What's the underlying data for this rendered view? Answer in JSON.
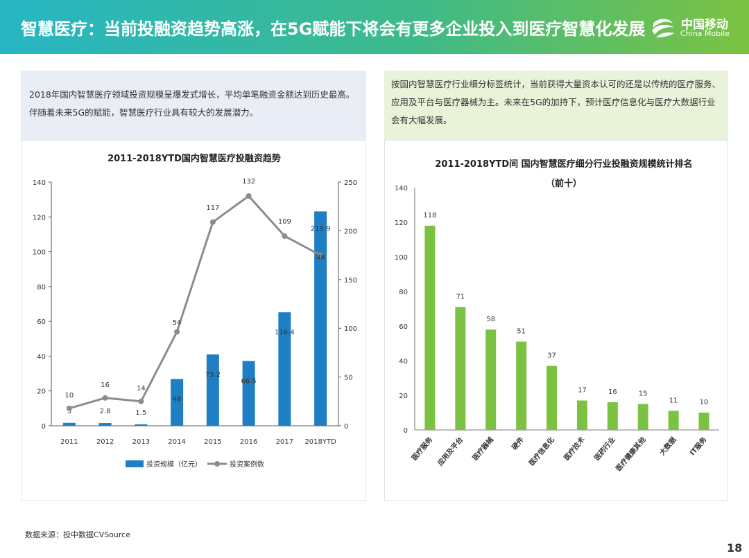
{
  "header": {
    "title": "智慧医疗：当前投融资趋势高涨，在5G赋能下将会有更多企业投入到医疗智慧化发展",
    "logo_cn": "中国移动",
    "logo_en": "China Mobile"
  },
  "left_desc": "2018年国内智慧医疗领域投资规模呈爆发式增长，平均单笔融资金额达到历史最高。伴随着未来5G的赋能，智慧医疗行业具有较大的发展潜力。",
  "right_desc": "按国内智慧医疗行业细分标签统计，当前获得大量资本认可的还是以传统的医疗服务、应用及平台与医疗器械为主。未来在5G的加持下，预计医疗信息化与医疗大数据行业会有大幅发展。",
  "source": "数据来源：投中数据CVSource",
  "page_number": "18",
  "colors": {
    "bar_blue": "#1f7fc4",
    "line_gray": "#8c8c8c",
    "bar_green": "#7cc242"
  },
  "chart_data": [
    {
      "type": "bar",
      "title": "2011-2018YTD国内智慧医疗投融资趋势",
      "categories": [
        "2011",
        "2012",
        "2013",
        "2014",
        "2015",
        "2016",
        "2017",
        "2018YTD"
      ],
      "series": [
        {
          "name": "投资规模（亿元）",
          "type": "bar",
          "axis": "right",
          "values": [
            3,
            2.8,
            1.5,
            48,
            73.2,
            66.5,
            116.4,
            219.9
          ],
          "labels": [
            "3",
            "2.8",
            "1.5",
            "48",
            "73.2",
            "66.5",
            "116.4",
            "219.9"
          ]
        },
        {
          "name": "投资案例数",
          "type": "line",
          "axis": "left",
          "values": [
            10,
            16,
            14,
            54,
            117,
            132,
            109,
            98
          ],
          "labels": [
            "10",
            "16",
            "14",
            "54",
            "117",
            "132",
            "109",
            "98"
          ]
        }
      ],
      "left_axis": {
        "ylim": [
          0,
          140
        ],
        "ticks": [
          "0",
          "20",
          "40",
          "60",
          "80",
          "100",
          "120",
          "140"
        ]
      },
      "right_axis": {
        "ylim": [
          0,
          250
        ],
        "ticks": [
          "0",
          "50",
          "100",
          "150",
          "200",
          "250"
        ]
      },
      "legend": [
        "投资规模（亿元）",
        "投资案例数"
      ]
    },
    {
      "type": "bar",
      "title": "2011-2018YTD间 国内智慧医疗细分行业投融资规模统计排名",
      "subtitle": "（前十）",
      "categories": [
        "医疗服务",
        "应用及平台",
        "医疗器械",
        "硬件",
        "医疗信息化",
        "医疗技术",
        "医药行业",
        "医疗健康其他",
        "大数据",
        "IT服务"
      ],
      "values": [
        118,
        71,
        58,
        51,
        37,
        17,
        16,
        15,
        11,
        10
      ],
      "labels": [
        "118",
        "71",
        "58",
        "51",
        "37",
        "17",
        "16",
        "15",
        "11",
        "10"
      ],
      "ylim": [
        0,
        140
      ],
      "ticks": [
        "0",
        "20",
        "40",
        "60",
        "80",
        "100",
        "120",
        "140"
      ]
    }
  ]
}
